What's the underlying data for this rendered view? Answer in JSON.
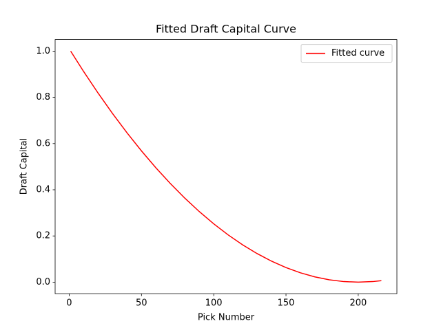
{
  "chart_data": {
    "type": "line",
    "title": "Fitted Draft Capital Curve",
    "x_label": "Pick Number",
    "y_label": "Draft Capital",
    "x": [
      1,
      10,
      20,
      30,
      40,
      50,
      60,
      70,
      80,
      90,
      100,
      110,
      120,
      130,
      140,
      150,
      160,
      170,
      180,
      190,
      200,
      210,
      216
    ],
    "series": [
      {
        "name": "Fitted curve",
        "color": "#ff0000",
        "values": [
          1.0,
          0.9116,
          0.8182,
          0.7298,
          0.6465,
          0.5682,
          0.4949,
          0.4268,
          0.3636,
          0.3055,
          0.2525,
          0.2045,
          0.1616,
          0.1237,
          0.0909,
          0.0631,
          0.0404,
          0.0227,
          0.0101,
          0.0025,
          0.0,
          0.0025,
          0.0065
        ]
      }
    ],
    "xlim": [
      -9.75,
      226.75
    ],
    "xticks": [
      0,
      50,
      100,
      150,
      200
    ],
    "ylim": [
      -0.05,
      1.05
    ],
    "yticks": [
      {
        "value": 0,
        "label": "0.0"
      },
      0.2,
      0.4,
      0.6,
      0.8,
      {
        "value": 1,
        "label": "1.0"
      }
    ],
    "grid": false,
    "legend": "upper right"
  }
}
